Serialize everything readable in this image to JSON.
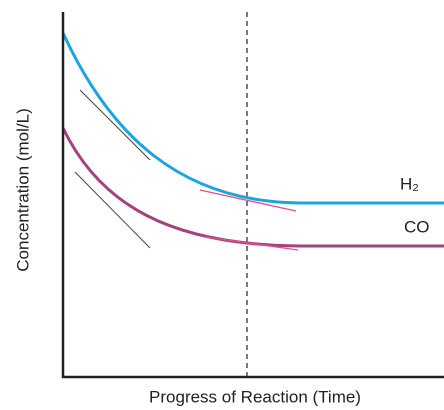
{
  "axes": {
    "x_label": "Progress of Reaction (Time)",
    "y_label": "Concentration (mol/L)"
  },
  "curves": [
    {
      "label": "H₂"
    },
    {
      "label": "CO"
    }
  ]
}
